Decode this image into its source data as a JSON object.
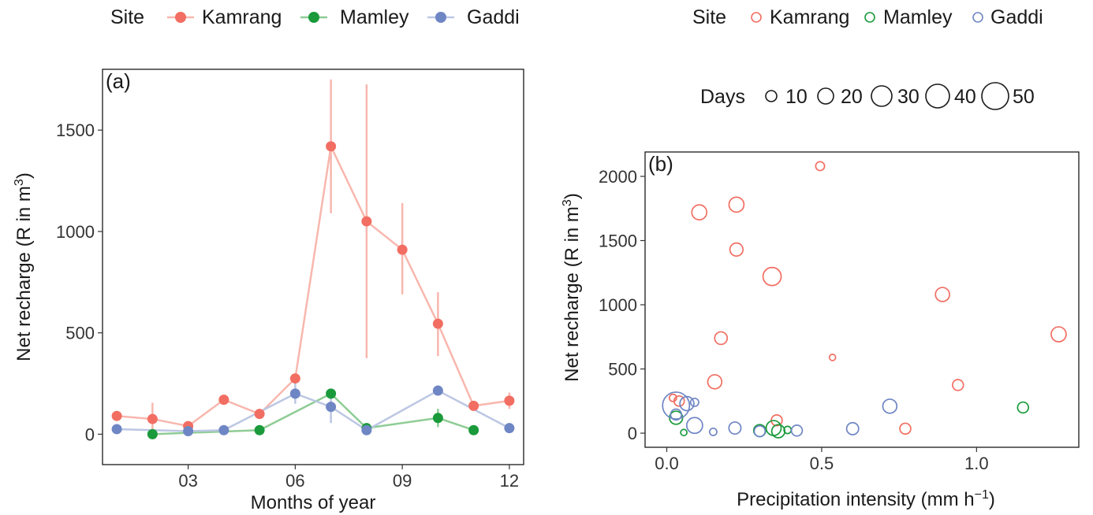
{
  "figure": {
    "legend_title": "Site",
    "sites": [
      {
        "name": "Kamrang",
        "color": "#f26e62"
      },
      {
        "name": "Mamley",
        "color": "#1a9a3a"
      },
      {
        "name": "Gaddi",
        "color": "#6f86c4"
      }
    ],
    "size_legend_title": "Days",
    "size_legend_values": [
      "10",
      "20",
      "30",
      "40",
      "50"
    ]
  },
  "chart_data": [
    {
      "type": "line",
      "panel_label": "(a)",
      "xlabel": "Months of year",
      "ylabel_main": "Net recharge (R in m",
      "ylabel_sup": "3",
      "ylabel_end": ")",
      "xlim": [
        0.6,
        12.4
      ],
      "ylim": [
        -150,
        1800
      ],
      "xticks": [
        3,
        6,
        9,
        12
      ],
      "xtick_labels": [
        "03",
        "06",
        "09",
        "12"
      ],
      "yticks": [
        0,
        500,
        1000,
        1500
      ],
      "ytick_labels": [
        "0",
        "500",
        "1000",
        "1500"
      ],
      "series": [
        {
          "name": "Kamrang",
          "color": "#f26e62",
          "line_color": "#f8b7ae",
          "x": [
            1,
            2,
            3,
            4,
            5,
            6,
            7,
            8,
            9,
            10,
            11,
            12
          ],
          "y": [
            90,
            75,
            40,
            170,
            100,
            275,
            1420,
            1050,
            910,
            545,
            140,
            165
          ],
          "err_low": [
            90,
            20,
            40,
            170,
            100,
            275,
            1090,
            375,
            690,
            385,
            140,
            125
          ],
          "err_high": [
            90,
            155,
            40,
            170,
            100,
            275,
            1750,
            1725,
            1140,
            700,
            140,
            205
          ]
        },
        {
          "name": "Mamley",
          "color": "#1a9a3a",
          "line_color": "#8fcc95",
          "x": [
            2,
            5,
            7,
            8,
            10,
            11
          ],
          "y": [
            0,
            20,
            200,
            30,
            80,
            20
          ],
          "err_low": [
            0,
            20,
            200,
            30,
            35,
            20
          ],
          "err_high": [
            0,
            20,
            200,
            30,
            125,
            20
          ]
        },
        {
          "name": "Gaddi",
          "color": "#6f86c4",
          "line_color": "#bcc7e3",
          "x": [
            1,
            3,
            4,
            6,
            7,
            8,
            10,
            12
          ],
          "y": [
            25,
            15,
            20,
            200,
            135,
            20,
            215,
            30
          ],
          "err_low": [
            25,
            15,
            20,
            150,
            55,
            20,
            215,
            30
          ],
          "err_high": [
            25,
            15,
            20,
            250,
            215,
            20,
            215,
            30
          ]
        }
      ]
    },
    {
      "type": "scatter",
      "panel_label": "(b)",
      "xlabel_main": "Precipitation intensity (mm h",
      "xlabel_sup": "−1",
      "xlabel_end": ")",
      "ylabel_main": "Net recharge (R in m",
      "ylabel_sup": "3",
      "ylabel_end": ")",
      "xlim": [
        -0.07,
        1.33
      ],
      "ylim": [
        -110,
        2190
      ],
      "xticks": [
        0,
        0.5,
        1
      ],
      "xtick_labels": [
        "0.0",
        "0.5",
        "1.0"
      ],
      "yticks": [
        0,
        500,
        1000,
        1500,
        2000
      ],
      "ytick_labels": [
        "0",
        "500",
        "1000",
        "1500",
        "2000"
      ],
      "series": [
        {
          "name": "Kamrang",
          "color": "#f26e62",
          "points": [
            {
              "x": 0.495,
              "y": 2080,
              "days": 6
            },
            {
              "x": 0.225,
              "y": 1780,
              "days": 17
            },
            {
              "x": 0.105,
              "y": 1720,
              "days": 17
            },
            {
              "x": 0.225,
              "y": 1430,
              "days": 13
            },
            {
              "x": 0.34,
              "y": 1220,
              "days": 25
            },
            {
              "x": 0.89,
              "y": 1080,
              "days": 15
            },
            {
              "x": 1.265,
              "y": 770,
              "days": 17
            },
            {
              "x": 0.175,
              "y": 740,
              "days": 12
            },
            {
              "x": 0.535,
              "y": 590,
              "days": 3
            },
            {
              "x": 0.155,
              "y": 400,
              "days": 15
            },
            {
              "x": 0.94,
              "y": 375,
              "days": 9
            },
            {
              "x": 0.02,
              "y": 275,
              "days": 4
            },
            {
              "x": 0.04,
              "y": 250,
              "days": 8
            },
            {
              "x": 0.355,
              "y": 100,
              "days": 9
            },
            {
              "x": 0.77,
              "y": 35,
              "days": 9
            }
          ]
        },
        {
          "name": "Mamley",
          "color": "#1a9a3a",
          "points": [
            {
              "x": 1.15,
              "y": 200,
              "days": 9
            },
            {
              "x": 0.03,
              "y": 120,
              "days": 13
            },
            {
              "x": 0.055,
              "y": 5,
              "days": 3
            },
            {
              "x": 0.3,
              "y": 20,
              "days": 11
            },
            {
              "x": 0.345,
              "y": 40,
              "days": 17
            },
            {
              "x": 0.36,
              "y": 15,
              "days": 13
            },
            {
              "x": 0.39,
              "y": 25,
              "days": 4
            }
          ]
        },
        {
          "name": "Gaddi",
          "color": "#6f86c4",
          "points": [
            {
              "x": 0.03,
              "y": 215,
              "days": 55
            },
            {
              "x": 0.065,
              "y": 230,
              "days": 15
            },
            {
              "x": 0.09,
              "y": 240,
              "days": 5
            },
            {
              "x": 0.03,
              "y": 145,
              "days": 9
            },
            {
              "x": 0.09,
              "y": 60,
              "days": 19
            },
            {
              "x": 0.15,
              "y": 10,
              "days": 4
            },
            {
              "x": 0.22,
              "y": 40,
              "days": 11
            },
            {
              "x": 0.3,
              "y": 15,
              "days": 9
            },
            {
              "x": 0.42,
              "y": 20,
              "days": 9
            },
            {
              "x": 0.6,
              "y": 35,
              "days": 11
            },
            {
              "x": 0.72,
              "y": 210,
              "days": 15
            }
          ]
        }
      ]
    }
  ]
}
